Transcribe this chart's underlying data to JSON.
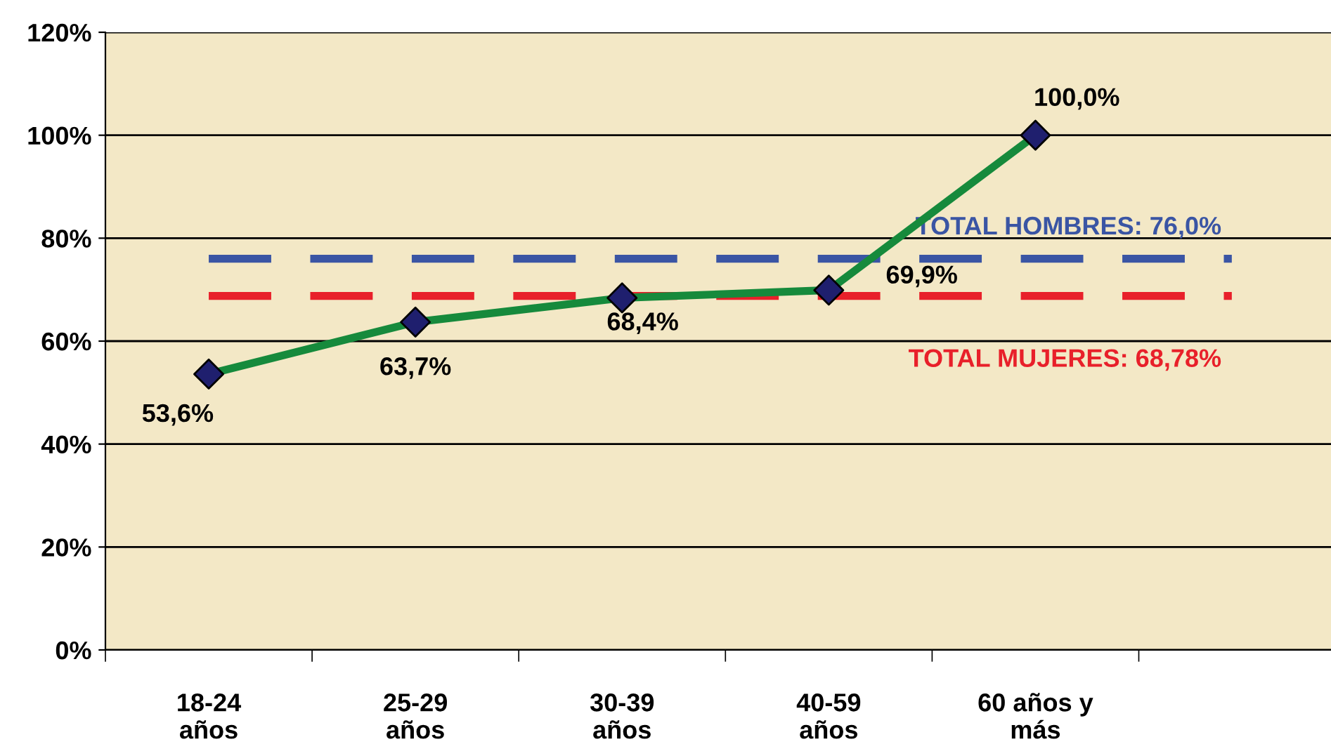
{
  "chart_data": {
    "type": "line",
    "categories": [
      "18-24\naños",
      "25-29\naños",
      "30-39\naños",
      "40-59\naños",
      "60 años y\nmás"
    ],
    "series": [
      {
        "color": "#168a3c",
        "values": [
          53.6,
          63.7,
          68.4,
          69.9,
          100.0
        ],
        "value_labels": [
          "53,6%",
          "63,7%",
          "68,4%",
          "69,9%",
          "100,0%"
        ]
      }
    ],
    "marker": "diamond",
    "line_style": "solid",
    "grid": "y",
    "legend": false,
    "ylim": [
      0,
      120
    ],
    "yticks": [
      {
        "value": 0,
        "label": "0%"
      },
      {
        "value": 20,
        "label": "20%"
      },
      {
        "value": 40,
        "label": "40%"
      },
      {
        "value": 60,
        "label": "60%"
      },
      {
        "value": 80,
        "label": "80%"
      },
      {
        "value": 100,
        "label": "100%"
      },
      {
        "value": 120,
        "label": "120%"
      }
    ],
    "ref_lines": [
      {
        "axis": "y",
        "value": 76.0,
        "label": "TOTAL HOMBRES: 76,0%",
        "color": "#3a55a4",
        "line_style": "dashed"
      },
      {
        "axis": "y",
        "value": 68.78,
        "label": "TOTAL MUJERES: 68,78%",
        "color": "#e8202a",
        "line_style": "dashed"
      }
    ]
  }
}
